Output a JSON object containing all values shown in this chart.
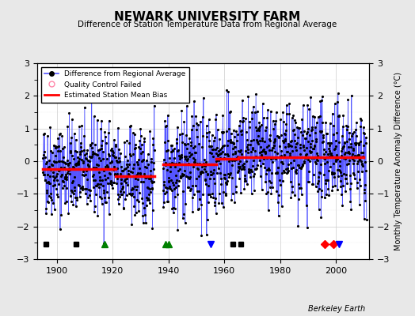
{
  "title": "NEWARK UNIVERSITY FARM",
  "subtitle": "Difference of Station Temperature Data from Regional Average",
  "ylabel": "Monthly Temperature Anomaly Difference (°C)",
  "xlabel_bottom": "Berkeley Earth",
  "ylim": [
    -3,
    3
  ],
  "xlim": [
    1893,
    2012
  ],
  "bg_color": "#e8e8e8",
  "plot_bg_color": "#ffffff",
  "segments": [
    {
      "xstart": 1895,
      "xend": 1921,
      "bias": -0.25
    },
    {
      "xstart": 1921,
      "xend": 1935,
      "bias": -0.45
    },
    {
      "xstart": 1938,
      "xend": 1957,
      "bias": -0.12
    },
    {
      "xstart": 1957,
      "xend": 1965,
      "bias": 0.08
    },
    {
      "xstart": 1965,
      "xend": 2011,
      "bias": 0.12
    }
  ],
  "event_markers": {
    "empirical_breaks": [
      1896,
      1907,
      1963,
      1966
    ],
    "record_gaps": [
      1917,
      1939,
      1940
    ],
    "station_moves": [
      1996,
      1999
    ],
    "obs_changes": [
      1955,
      2001
    ]
  },
  "seed": 42
}
